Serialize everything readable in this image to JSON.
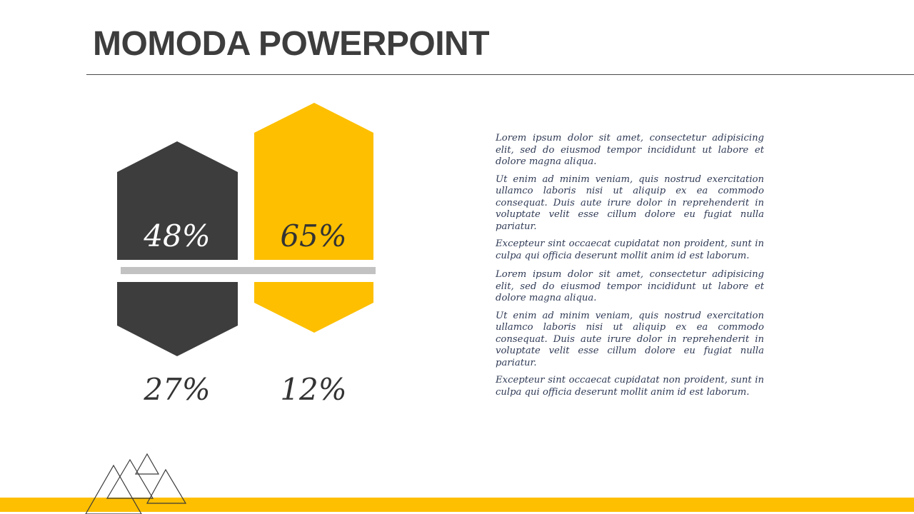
{
  "slide": {
    "title": "MOMODA POWERPOINT",
    "colors": {
      "dark": "#3d3d3d",
      "accent": "#fdbf00",
      "divider": "#c2c2c2",
      "text": "#2f3a55"
    }
  },
  "shapes": {
    "dark_top_pct": "48%",
    "yellow_top_pct": "65%",
    "dark_bottom_pct": "27%",
    "yellow_bottom_pct": "12%"
  },
  "text_blocks": [
    {
      "paragraphs": [
        "Lorem ipsum dolor sit amet, consectetur adipisicing elit, sed do eiusmod tempor incididunt ut labore et dolore magna aliqua.",
        "Ut enim ad minim veniam, quis nostrud exercitation ullamco laboris nisi ut aliquip ex ea commodo consequat. Duis aute irure dolor in reprehenderit in voluptate velit esse cillum dolore eu fugiat nulla pariatur.",
        "Excepteur sint occaecat cupidatat non proident, sunt in culpa qui officia deserunt mollit anim id est laborum."
      ]
    },
    {
      "paragraphs": [
        "Lorem ipsum dolor sit amet, consectetur adipisicing elit, sed do eiusmod tempor incididunt ut labore et dolore magna aliqua.",
        "Ut enim ad minim veniam, quis nostrud exercitation ullamco laboris nisi ut aliquip ex ea commodo consequat. Duis aute irure dolor in reprehenderit in voluptate velit esse cillum dolore eu fugiat nulla pariatur.",
        "Excepteur sint occaecat cupidatat non proident, sunt in culpa qui officia deserunt mollit anim id est laborum."
      ]
    }
  ]
}
